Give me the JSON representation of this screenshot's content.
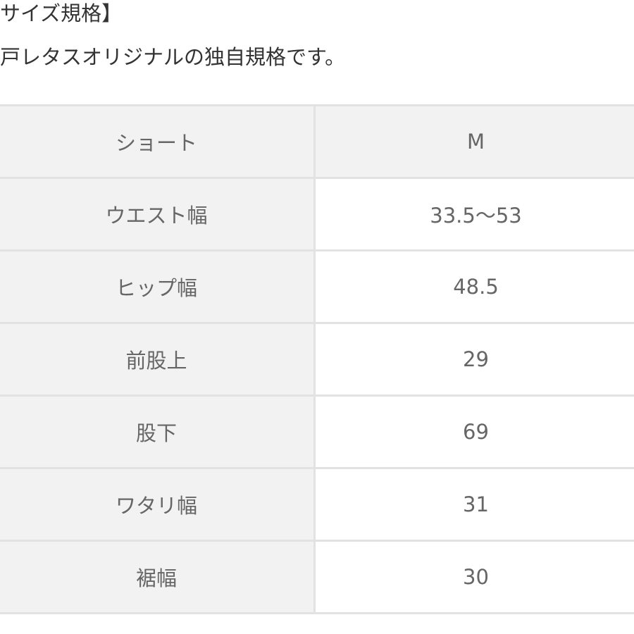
{
  "heading": "サイズ規格】",
  "subtitle": "戸レタスオリジナルの独自規格です。",
  "table": {
    "header": {
      "label": "ショート",
      "value": "M"
    },
    "rows": [
      {
        "label": "ウエスト幅",
        "value": "33.5〜53"
      },
      {
        "label": "ヒップ幅",
        "value": "48.5"
      },
      {
        "label": "前股上",
        "value": "29"
      },
      {
        "label": "股下",
        "value": "69"
      },
      {
        "label": "ワタリ幅",
        "value": "31"
      },
      {
        "label": "裾幅",
        "value": "30"
      }
    ]
  }
}
